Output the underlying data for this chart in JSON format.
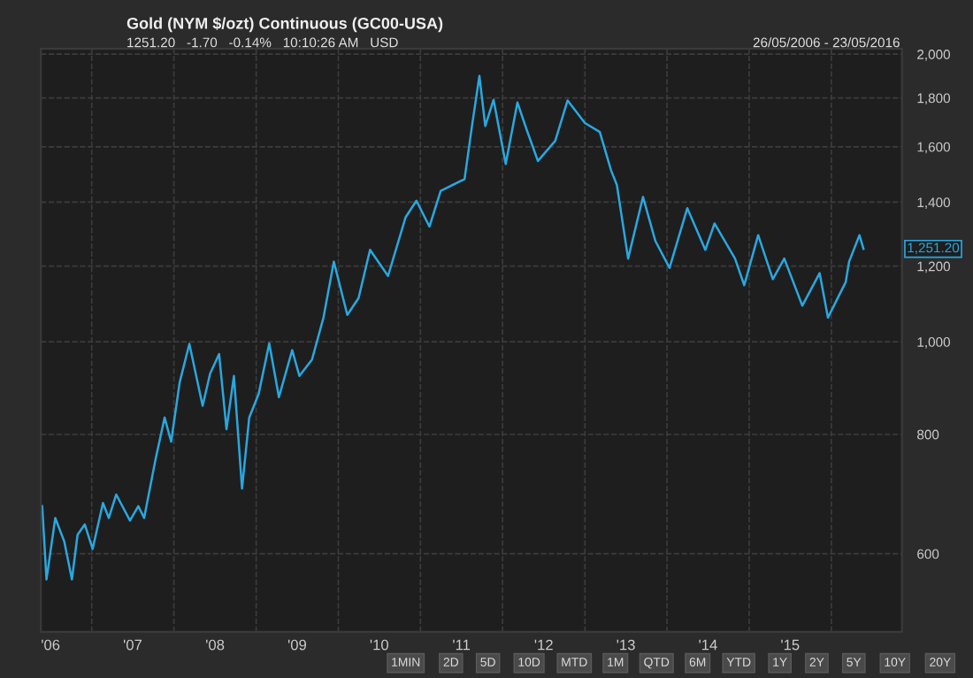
{
  "chart_data": {
    "type": "line",
    "title": "Gold (NYM $/ozt) Continuous (GC00-USA)",
    "subtitle": "1251.20   -1.70   -0.14%   10:10:26 AM   USD",
    "annotations": [
      "26/05/2006 - 23/05/2016",
      "1,251.20",
      "1MIN",
      "2D",
      "5D",
      "10D",
      "MTD",
      "1M",
      "QTD",
      "6M",
      "YTD",
      "1Y",
      "2Y",
      "5Y",
      "10Y",
      "20Y"
    ],
    "log": "y",
    "grid": true,
    "marker": "none",
    "line_style": "solid",
    "xlim": [
      "2006-05-20",
      "2016-11-10"
    ],
    "xticks": [
      {
        "value": "2006-07-02",
        "label": "'06"
      },
      {
        "value": "2007-01-01",
        "label": null
      },
      {
        "value": "2007-07-02",
        "label": "'07"
      },
      {
        "value": "2008-01-01",
        "label": null
      },
      {
        "value": "2008-07-02",
        "label": "'08"
      },
      {
        "value": "2009-01-01",
        "label": null
      },
      {
        "value": "2009-07-02",
        "label": "'09"
      },
      {
        "value": "2010-01-01",
        "label": null
      },
      {
        "value": "2010-07-02",
        "label": "'10"
      },
      {
        "value": "2011-01-01",
        "label": null
      },
      {
        "value": "2011-07-02",
        "label": "'11"
      },
      {
        "value": "2012-01-01",
        "label": null
      },
      {
        "value": "2012-07-02",
        "label": "'12"
      },
      {
        "value": "2013-01-01",
        "label": null
      },
      {
        "value": "2013-07-02",
        "label": "'13"
      },
      {
        "value": "2014-01-01",
        "label": null
      },
      {
        "value": "2014-07-02",
        "label": "'14"
      },
      {
        "value": "2015-01-01",
        "label": null
      },
      {
        "value": "2015-07-02",
        "label": "'15"
      },
      {
        "value": "2016-01-01",
        "label": null
      }
    ],
    "ylim": [
      497,
      2026
    ],
    "yticks": [
      {
        "value": 600,
        "label": "600"
      },
      {
        "value": 800,
        "label": "800"
      },
      {
        "value": 1000,
        "label": "1,000"
      },
      {
        "value": 1200,
        "label": "1,200"
      },
      {
        "value": 1400,
        "label": "1,400"
      },
      {
        "value": 1600,
        "label": "1,600"
      },
      {
        "value": 1800,
        "label": "1,800"
      },
      {
        "value": 2000,
        "label": "2,000"
      }
    ],
    "series": [
      {
        "color": "#29a8e0",
        "x": [
          "2006-05-26",
          "2006-06-14",
          "2006-07-23",
          "2006-09-01",
          "2006-10-05",
          "2006-10-30",
          "2006-12-01",
          "2007-01-05",
          "2007-02-20",
          "2007-03-18",
          "2007-04-20",
          "2007-06-20",
          "2007-07-27",
          "2007-08-22",
          "2007-10-12",
          "2007-11-21",
          "2007-12-20",
          "2008-01-27",
          "2008-03-10",
          "2008-04-12",
          "2008-05-08",
          "2008-06-10",
          "2008-07-20",
          "2008-08-22",
          "2008-09-24",
          "2008-10-30",
          "2008-12-01",
          "2009-01-12",
          "2009-02-28",
          "2009-04-12",
          "2009-06-10",
          "2009-07-12",
          "2009-09-06",
          "2009-10-27",
          "2009-12-12",
          "2010-02-10",
          "2010-04-01",
          "2010-05-22",
          "2010-08-10",
          "2010-10-27",
          "2010-12-14",
          "2011-02-10",
          "2011-04-01",
          "2011-07-16",
          "2011-08-18",
          "2011-09-20",
          "2011-10-16",
          "2011-11-22",
          "2012-01-15",
          "2012-03-07",
          "2012-04-16",
          "2012-06-06",
          "2012-08-22",
          "2012-10-16",
          "2013-01-01",
          "2013-03-08",
          "2013-04-27",
          "2013-05-23",
          "2013-07-12",
          "2013-09-16",
          "2013-11-10",
          "2014-01-12",
          "2014-04-01",
          "2014-06-20",
          "2014-07-31",
          "2014-10-30",
          "2014-12-10",
          "2015-02-10",
          "2015-04-16",
          "2015-06-06",
          "2015-08-25",
          "2015-11-10",
          "2015-12-17",
          "2016-03-05",
          "2016-03-20",
          "2016-05-05",
          "2016-05-23"
        ],
        "values": [
          673,
          564,
          654,
          618,
          564,
          628,
          644,
          607,
          678,
          654,
          692,
          650,
          673,
          654,
          754,
          833,
          786,
          907,
          995,
          915,
          857,
          926,
          971,
          810,
          921,
          702,
          833,
          882,
          996,
          875,
          980,
          921,
          958,
          1060,
          1213,
          1067,
          1111,
          1248,
          1172,
          1350,
          1405,
          1320,
          1439,
          1480,
          1682,
          1898,
          1682,
          1792,
          1535,
          1780,
          1670,
          1546,
          1623,
          1789,
          1694,
          1658,
          1512,
          1459,
          1222,
          1418,
          1275,
          1195,
          1380,
          1248,
          1330,
          1222,
          1146,
          1293,
          1163,
          1222,
          1091,
          1180,
          1060,
          1155,
          1213,
          1293,
          1251
        ]
      }
    ]
  }
}
